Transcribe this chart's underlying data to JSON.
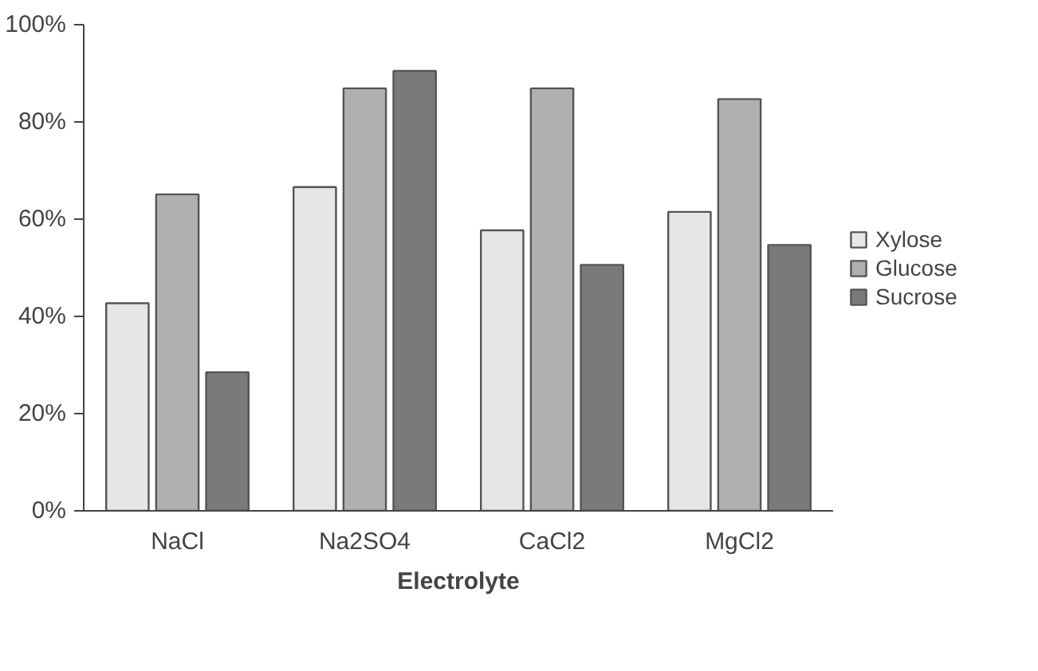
{
  "chart_data": {
    "type": "bar",
    "xlabel": "Electrolyte",
    "categories": [
      "NaCl",
      "Na2SO4",
      "CaCl2",
      "MgCl2"
    ],
    "series": [
      {
        "name": "Xylose",
        "color": "#e6e6e6",
        "values": [
          42.7,
          66.6,
          57.7,
          61.5
        ]
      },
      {
        "name": "Glucose",
        "color": "#b0b0b0",
        "values": [
          65.1,
          86.9,
          86.9,
          84.7
        ]
      },
      {
        "name": "Sucrose",
        "color": "#7a7a7a",
        "values": [
          28.5,
          90.5,
          50.6,
          54.7
        ]
      }
    ],
    "ylim": [
      0,
      100
    ],
    "yticks": [
      {
        "value": 0,
        "label": "0%"
      },
      {
        "value": 20,
        "label": "20%"
      },
      {
        "value": 40,
        "label": "40%"
      },
      {
        "value": 60,
        "label": "60%"
      },
      {
        "value": 80,
        "label": "80%"
      },
      {
        "value": 100,
        "label": "100%"
      }
    ],
    "grid": false,
    "legend": "right"
  }
}
